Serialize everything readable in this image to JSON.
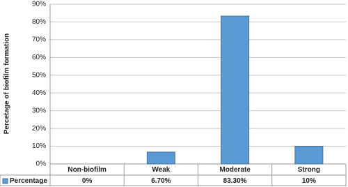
{
  "chart_data": {
    "type": "bar",
    "y_label": "Percetage of biofilm formation",
    "categories": [
      "Non-biofilm",
      "Weak",
      "Moderate",
      "Strong"
    ],
    "series": [
      {
        "name": "Percentage",
        "color": "#5b9bd5",
        "values": [
          0,
          6.7,
          83.3,
          10
        ],
        "value_labels": [
          "0%",
          "6.70%",
          "83.30%",
          "10%"
        ]
      }
    ],
    "ylim": [
      0,
      90
    ],
    "yticks": [
      {
        "value": 0,
        "label": "0%"
      },
      {
        "value": 10,
        "label": "10%"
      },
      {
        "value": 20,
        "label": "20%"
      },
      {
        "value": 30,
        "label": "30%"
      },
      {
        "value": 40,
        "label": "40%"
      },
      {
        "value": 50,
        "label": "50%"
      },
      {
        "value": 60,
        "label": "60%"
      },
      {
        "value": 70,
        "label": "70%"
      },
      {
        "value": 80,
        "label": "80%"
      },
      {
        "value": 90,
        "label": "90%"
      }
    ],
    "grid": true
  }
}
